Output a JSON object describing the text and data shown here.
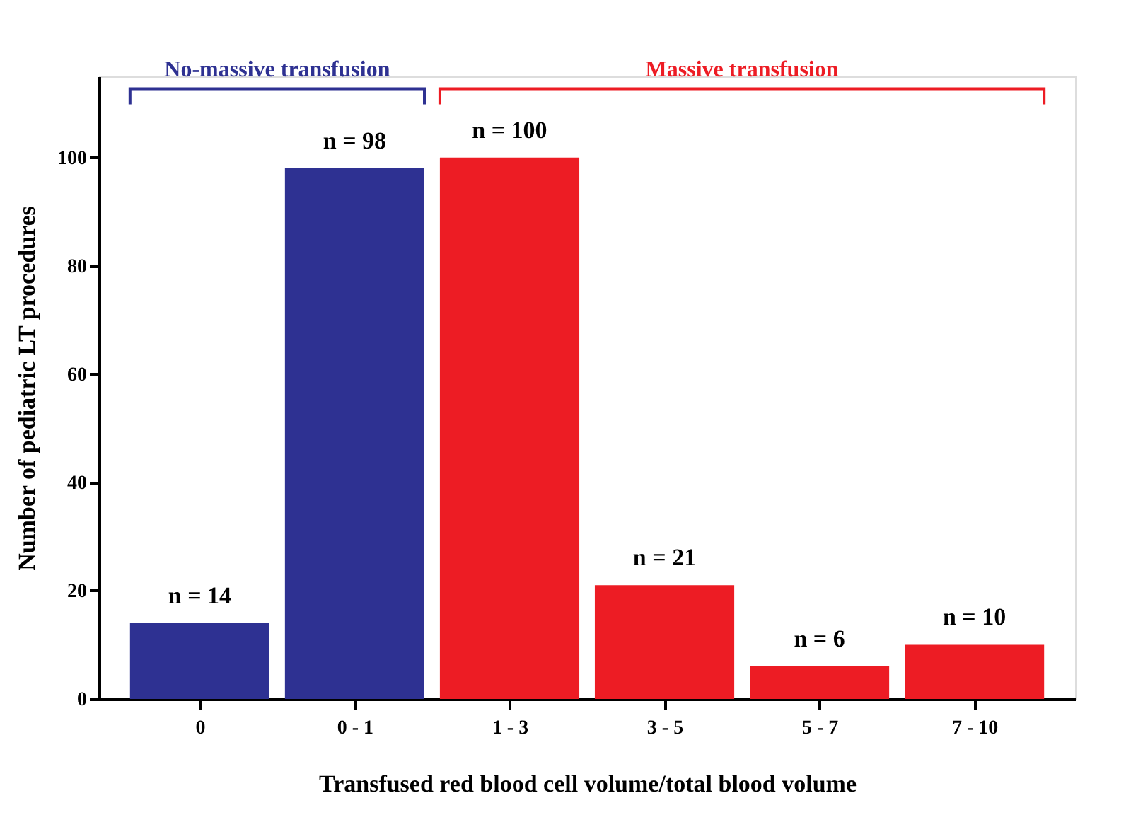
{
  "chart_data": {
    "type": "bar",
    "xlabel": "Transfused red blood cell volume/total blood volume",
    "ylabel": "Number of pediatric LT procedures",
    "categories": [
      "0",
      "0 - 1",
      "1 - 3",
      "3 - 5",
      "5 - 7",
      "7 - 10"
    ],
    "values": [
      14,
      98,
      100,
      21,
      6,
      10
    ],
    "colors": [
      "#2e3192",
      "#2e3192",
      "#ed1c24",
      "#ed1c24",
      "#ed1c24",
      "#ed1c24"
    ],
    "value_labels": [
      "n = 14",
      "n = 98",
      "n = 100",
      "n = 21",
      "n = 6",
      "n = 10"
    ],
    "annotations": [
      "No-massive transfusion",
      "Massive transfusion"
    ],
    "ylim": [
      0,
      115
    ],
    "yticks": [
      0,
      20,
      40,
      60,
      80,
      100
    ],
    "grid": false,
    "legend": false
  }
}
